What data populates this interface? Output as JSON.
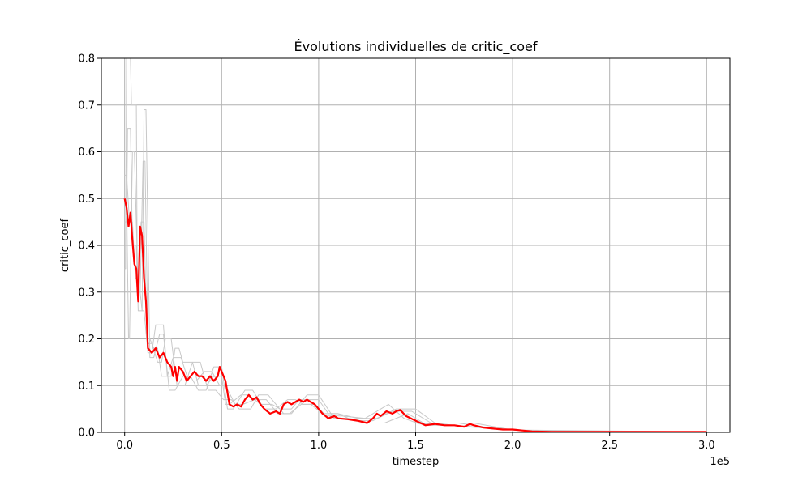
{
  "chart_data": {
    "type": "line",
    "title": "Évolutions individuelles de critic_coef",
    "xlabel": "timestep",
    "ylabel": "critic_coef",
    "x_offset_label": "1e5",
    "xlim": [
      -12000,
      312000
    ],
    "ylim": [
      0,
      0.8
    ],
    "grid": true,
    "xticks": [
      0,
      50000,
      100000,
      150000,
      200000,
      250000,
      300000
    ],
    "xtick_labels": [
      "0.0",
      "0.5",
      "1.0",
      "1.5",
      "2.0",
      "2.5",
      "3.0"
    ],
    "yticks": [
      0,
      0.1,
      0.2,
      0.3,
      0.4,
      0.5,
      0.6,
      0.7,
      0.8
    ],
    "ytick_labels": [
      "0.0",
      "0.1",
      "0.2",
      "0.3",
      "0.4",
      "0.5",
      "0.6",
      "0.7",
      "0.8"
    ],
    "colors": {
      "mean": "#ff0000",
      "individual": "#c8c8c8",
      "grid": "#b0b0b0"
    },
    "series": [
      {
        "role": "mean",
        "x": [
          0,
          1000,
          2000,
          3000,
          4000,
          5000,
          6000,
          7000,
          8000,
          9000,
          10000,
          11000,
          12000,
          14000,
          16000,
          17000,
          18000,
          20000,
          22000,
          24000,
          25000,
          26000,
          27000,
          28000,
          30000,
          32000,
          34000,
          36000,
          38000,
          40000,
          42000,
          44000,
          46000,
          48000,
          49000,
          50000,
          52000,
          54000,
          56000,
          58000,
          60000,
          62000,
          64000,
          66000,
          68000,
          70000,
          72000,
          75000,
          78000,
          80000,
          82000,
          84000,
          86000,
          88000,
          90000,
          92000,
          94000,
          96000,
          98000,
          100000,
          102000,
          105000,
          108000,
          110000,
          115000,
          120000,
          125000,
          128000,
          130000,
          132000,
          135000,
          138000,
          140000,
          142000,
          145000,
          150000,
          155000,
          160000,
          165000,
          170000,
          175000,
          178000,
          180000,
          185000,
          190000,
          195000,
          200000,
          205000,
          210000,
          220000,
          240000,
          260000,
          280000,
          300000
        ],
        "y": [
          0.5,
          0.48,
          0.44,
          0.47,
          0.41,
          0.36,
          0.35,
          0.28,
          0.44,
          0.42,
          0.33,
          0.28,
          0.18,
          0.17,
          0.18,
          0.17,
          0.16,
          0.17,
          0.15,
          0.14,
          0.12,
          0.14,
          0.11,
          0.14,
          0.13,
          0.11,
          0.12,
          0.13,
          0.12,
          0.12,
          0.11,
          0.12,
          0.11,
          0.12,
          0.14,
          0.13,
          0.11,
          0.06,
          0.055,
          0.06,
          0.055,
          0.07,
          0.08,
          0.07,
          0.075,
          0.06,
          0.05,
          0.04,
          0.045,
          0.04,
          0.06,
          0.065,
          0.06,
          0.065,
          0.07,
          0.065,
          0.07,
          0.065,
          0.06,
          0.05,
          0.04,
          0.03,
          0.035,
          0.03,
          0.028,
          0.025,
          0.02,
          0.03,
          0.04,
          0.035,
          0.045,
          0.04,
          0.045,
          0.048,
          0.035,
          0.025,
          0.015,
          0.018,
          0.015,
          0.015,
          0.012,
          0.018,
          0.015,
          0.01,
          0.008,
          0.006,
          0.006,
          0.004,
          0.002,
          0.001,
          0.001,
          0.001,
          0.001,
          0.001
        ]
      },
      {
        "role": "individual",
        "x": [
          0,
          500,
          1000,
          3000,
          3500,
          6000,
          6500,
          8000,
          9000,
          10000,
          12000,
          14000,
          16000,
          20000,
          22000,
          24000,
          26000,
          28000,
          30000,
          35000,
          38000,
          42000,
          46000,
          50000,
          52000,
          54000,
          60000,
          64000,
          70000,
          76000,
          80000,
          86000,
          90000,
          100000,
          105000,
          110000,
          120000,
          130000,
          140000,
          150000,
          160000,
          180000,
          200000,
          300000
        ],
        "y": [
          0.35,
          0.35,
          0.8,
          0.8,
          0.7,
          0.7,
          0.3,
          0.3,
          0.26,
          0.26,
          0.17,
          0.17,
          0.23,
          0.23,
          0.12,
          0.12,
          0.18,
          0.18,
          0.15,
          0.15,
          0.1,
          0.1,
          0.12,
          0.12,
          0.06,
          0.06,
          0.08,
          0.08,
          0.06,
          0.06,
          0.05,
          0.05,
          0.07,
          0.07,
          0.04,
          0.04,
          0.03,
          0.03,
          0.05,
          0.05,
          0.02,
          0.02,
          0.005,
          0.001
        ]
      },
      {
        "role": "individual",
        "x": [
          0,
          1000,
          1500,
          3000,
          4000,
          6000,
          7000,
          9000,
          10000,
          11000,
          13000,
          15000,
          18000,
          20000,
          23000,
          26000,
          30000,
          34000,
          38000,
          42000,
          46000,
          50000,
          53000,
          56000,
          62000,
          66000,
          72000,
          78000,
          84000,
          88000,
          92000,
          98000,
          104000,
          112000,
          124000,
          136000,
          144000,
          152000,
          164000,
          176000,
          190000,
          210000,
          300000
        ],
        "y": [
          0.45,
          0.45,
          0.65,
          0.65,
          0.4,
          0.4,
          0.26,
          0.26,
          0.69,
          0.69,
          0.16,
          0.16,
          0.21,
          0.21,
          0.09,
          0.09,
          0.12,
          0.12,
          0.09,
          0.09,
          0.14,
          0.14,
          0.05,
          0.05,
          0.09,
          0.09,
          0.05,
          0.05,
          0.07,
          0.07,
          0.06,
          0.06,
          0.035,
          0.035,
          0.03,
          0.06,
          0.03,
          0.018,
          0.018,
          0.012,
          0.008,
          0.002,
          0.001
        ]
      },
      {
        "role": "individual",
        "x": [
          0,
          1000,
          2000,
          2500,
          4000,
          5000,
          7000,
          8000,
          9500,
          10500,
          12000,
          14000,
          17000,
          19000,
          21000,
          24000,
          27000,
          31000,
          35000,
          39000,
          43000,
          47000,
          51000,
          55000,
          59000,
          65000,
          69000,
          74000,
          82000,
          86000,
          94000,
          100000,
          108000,
          116000,
          126000,
          134000,
          146000,
          156000,
          170000,
          185000,
          205000,
          300000
        ],
        "y": [
          0.5,
          0.5,
          0.2,
          0.2,
          0.6,
          0.6,
          0.3,
          0.3,
          0.58,
          0.58,
          0.19,
          0.19,
          0.15,
          0.15,
          0.2,
          0.2,
          0.1,
          0.1,
          0.15,
          0.15,
          0.09,
          0.09,
          0.07,
          0.07,
          0.05,
          0.05,
          0.08,
          0.08,
          0.04,
          0.04,
          0.08,
          0.08,
          0.03,
          0.03,
          0.02,
          0.02,
          0.04,
          0.015,
          0.015,
          0.01,
          0.004,
          0.001
        ]
      },
      {
        "role": "individual",
        "x": [
          0,
          1000,
          2500,
          4000,
          5500,
          7000,
          8500,
          10000,
          11500,
          13000,
          15000,
          17000,
          19000,
          22000,
          25000,
          29000,
          33000,
          37000,
          41000,
          45000,
          49000,
          52000,
          57000,
          61000,
          67000,
          73000,
          79000,
          85000,
          91000,
          96000,
          102000,
          110000,
          118000,
          128000,
          138000,
          148000,
          158000,
          172000,
          188000,
          208000,
          300000
        ],
        "y": [
          0.55,
          0.55,
          0.45,
          0.45,
          0.33,
          0.33,
          0.45,
          0.45,
          0.2,
          0.2,
          0.18,
          0.18,
          0.12,
          0.12,
          0.16,
          0.16,
          0.11,
          0.11,
          0.13,
          0.13,
          0.1,
          0.1,
          0.06,
          0.06,
          0.07,
          0.07,
          0.04,
          0.04,
          0.06,
          0.06,
          0.04,
          0.04,
          0.025,
          0.025,
          0.045,
          0.045,
          0.02,
          0.02,
          0.01,
          0.003,
          0.001
        ]
      }
    ]
  }
}
